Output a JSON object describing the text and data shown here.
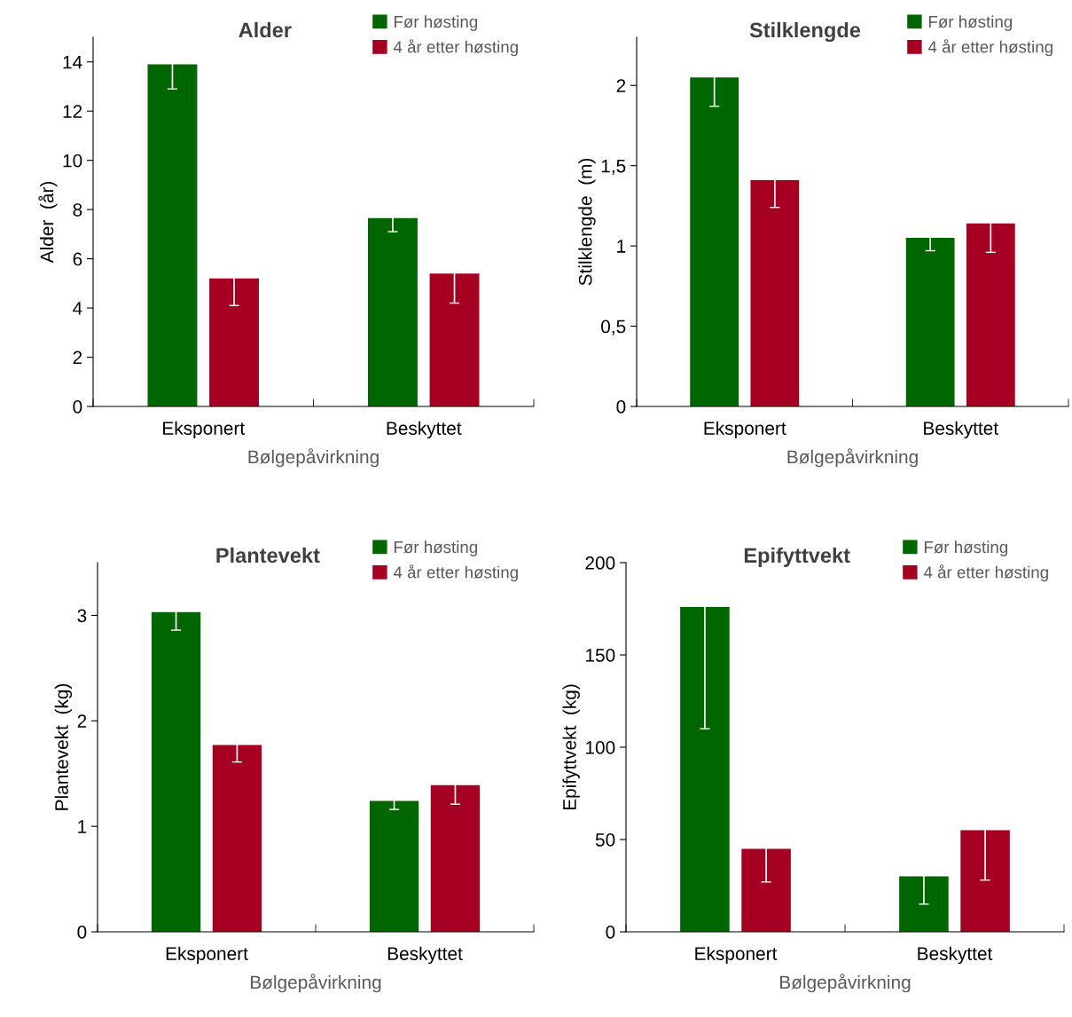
{
  "chart_data": [
    {
      "type": "bar",
      "title": "Alder",
      "xlabel": "Bølgepåvirkning",
      "ylabel": "Alder  (år)",
      "categories": [
        "Eksponert",
        "Beskyttet"
      ],
      "ylim": [
        0,
        15
      ],
      "yticks": [
        0,
        2,
        4,
        6,
        8,
        10,
        12,
        14
      ],
      "legend": "top right",
      "grid": false,
      "series": [
        {
          "name": "Før høsting",
          "color": "#006600",
          "values": [
            13.9,
            7.65
          ],
          "errors": [
            1.0,
            0.55
          ]
        },
        {
          "name": "4 år etter høsting",
          "color": "#a50021",
          "values": [
            5.2,
            5.4
          ],
          "errors": [
            1.1,
            1.2
          ]
        }
      ]
    },
    {
      "type": "bar",
      "title": "Stilklengde",
      "xlabel": "Bølgepåvirkning",
      "ylabel": "Stilklengde  (m)",
      "categories": [
        "Eksponert",
        "Beskyttet"
      ],
      "ylim": [
        0,
        2.3
      ],
      "yticks": [
        0,
        {
          "value": 0.5,
          "label": "0,5"
        },
        1,
        {
          "value": 1.5,
          "label": "1,5"
        },
        2
      ],
      "legend": "top right",
      "grid": false,
      "series": [
        {
          "name": "Før høsting",
          "color": "#006600",
          "values": [
            2.05,
            1.05
          ],
          "errors": [
            0.18,
            0.08
          ]
        },
        {
          "name": "4 år etter høsting",
          "color": "#a50021",
          "values": [
            1.41,
            1.14
          ],
          "errors": [
            0.17,
            0.18
          ]
        }
      ]
    },
    {
      "type": "bar",
      "title": "Plantevekt",
      "xlabel": "Bølgepåvirkning",
      "ylabel": "Plantevekt  (kg)",
      "categories": [
        "Eksponert",
        "Beskyttet"
      ],
      "ylim": [
        0,
        3.5
      ],
      "yticks": [
        0,
        1,
        2,
        3
      ],
      "legend": "top right",
      "grid": false,
      "series": [
        {
          "name": "Før høsting",
          "color": "#006600",
          "values": [
            3.03,
            1.24
          ],
          "errors": [
            0.17,
            0.08
          ]
        },
        {
          "name": "4 år etter høsting",
          "color": "#a50021",
          "values": [
            1.77,
            1.39
          ],
          "errors": [
            0.16,
            0.18
          ]
        }
      ]
    },
    {
      "type": "bar",
      "title": "Epifyttvekt",
      "xlabel": "Bølgepåvirkning",
      "ylabel": "Epifyttvekt  (kg)",
      "categories": [
        "Eksponert",
        "Beskyttet"
      ],
      "ylim": [
        0,
        200
      ],
      "yticks": [
        0,
        50,
        100,
        150,
        200
      ],
      "legend": "top right",
      "grid": false,
      "series": [
        {
          "name": "Før høsting",
          "color": "#006600",
          "values": [
            176,
            30
          ],
          "errors": [
            66,
            15
          ]
        },
        {
          "name": "4 år etter høsting",
          "color": "#a50021",
          "values": [
            45,
            55
          ],
          "errors": [
            18,
            27
          ]
        }
      ]
    }
  ]
}
